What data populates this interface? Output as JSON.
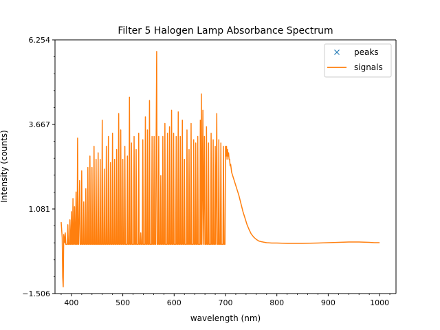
{
  "chart_data": {
    "type": "line",
    "title": "Filter 5 Halogen Lamp Absorbance Spectrum",
    "xlabel": "wavelength (nm)",
    "ylabel": "Intensity (counts)",
    "xlim": [
      368,
      1032
    ],
    "ylim": [
      -1.506,
      6.254
    ],
    "xticks": [
      400,
      500,
      600,
      700,
      800,
      900,
      1000
    ],
    "xtick_labels": [
      "400",
      "500",
      "600",
      "700",
      "800",
      "900",
      "1000"
    ],
    "yticks": [
      -1.506,
      1.081,
      3.667,
      6.254
    ],
    "ytick_labels": [
      "−1.506",
      "1.081",
      "3.667",
      "6.254"
    ],
    "grid": false,
    "legend": {
      "position": "top-right",
      "entries": [
        {
          "label": "peaks",
          "marker": "x",
          "color": "#1f77b4"
        },
        {
          "label": "signals",
          "marker": "line",
          "color": "#ff7f0e"
        }
      ]
    },
    "series": [
      {
        "name": "peaks",
        "style": "marker-x",
        "color": "#1f77b4",
        "points": []
      },
      {
        "name": "signals",
        "style": "line",
        "color": "#ff7f0e",
        "points": [
          [
            380,
            0.68
          ],
          [
            382,
            0.2
          ],
          [
            383,
            -1.0
          ],
          [
            384,
            -1.3
          ],
          [
            385,
            0.3
          ],
          [
            387,
            0.05
          ],
          [
            388,
            0.35
          ],
          [
            389,
            0.0
          ],
          [
            392,
            0.0
          ],
          [
            393,
            0.6
          ],
          [
            394,
            0.0
          ],
          [
            396,
            0.0
          ],
          [
            397,
            0.75
          ],
          [
            398,
            0.0
          ],
          [
            399,
            0.0
          ],
          [
            400,
            1.0
          ],
          [
            401,
            0.0
          ],
          [
            402,
            0.0
          ],
          [
            403,
            1.4
          ],
          [
            404,
            0.0
          ],
          [
            405,
            0.0
          ],
          [
            406,
            1.15
          ],
          [
            407,
            0.0
          ],
          [
            408,
            0.0
          ],
          [
            409,
            1.6
          ],
          [
            410,
            0.0
          ],
          [
            411,
            0.0
          ],
          [
            412,
            3.25
          ],
          [
            413,
            0.0
          ],
          [
            414,
            0.0
          ],
          [
            416,
            1.95
          ],
          [
            417,
            0.0
          ],
          [
            419,
            0.0
          ],
          [
            420,
            2.25
          ],
          [
            421,
            0.0
          ],
          [
            423,
            0.0
          ],
          [
            424,
            1.3
          ],
          [
            425,
            0.0
          ],
          [
            427,
            0.0
          ],
          [
            428,
            1.7
          ],
          [
            429,
            0.0
          ],
          [
            431,
            0.0
          ],
          [
            432,
            2.35
          ],
          [
            433,
            0.0
          ],
          [
            435,
            0.0
          ],
          [
            436,
            2.7
          ],
          [
            437,
            0.0
          ],
          [
            439,
            0.0
          ],
          [
            440,
            2.35
          ],
          [
            441,
            0.0
          ],
          [
            443,
            0.0
          ],
          [
            444,
            3.0
          ],
          [
            445,
            0.0
          ],
          [
            447,
            0.0
          ],
          [
            448,
            2.6
          ],
          [
            449,
            0.0
          ],
          [
            451,
            0.0
          ],
          [
            452,
            2.8
          ],
          [
            453,
            0.0
          ],
          [
            455,
            0.0
          ],
          [
            456,
            2.6
          ],
          [
            457,
            0.0
          ],
          [
            459,
            0.0
          ],
          [
            460,
            3.8
          ],
          [
            461,
            0.0
          ],
          [
            463,
            0.0
          ],
          [
            464,
            2.3
          ],
          [
            465,
            0.0
          ],
          [
            467,
            0.0
          ],
          [
            468,
            3.0
          ],
          [
            469,
            0.0
          ],
          [
            471,
            0.0
          ],
          [
            472,
            3.3
          ],
          [
            473,
            0.0
          ],
          [
            475,
            0.0
          ],
          [
            476,
            2.5
          ],
          [
            477,
            0.0
          ],
          [
            479,
            0.0
          ],
          [
            480,
            3.4
          ],
          [
            481,
            0.0
          ],
          [
            483,
            0.0
          ],
          [
            484,
            2.6
          ],
          [
            485,
            0.0
          ],
          [
            487,
            0.0
          ],
          [
            488,
            2.9
          ],
          [
            489,
            0.0
          ],
          [
            491,
            0.0
          ],
          [
            492,
            4.0
          ],
          [
            493,
            0.0
          ],
          [
            495,
            0.0
          ],
          [
            496,
            3.5
          ],
          [
            497,
            0.0
          ],
          [
            499,
            0.0
          ],
          [
            500,
            2.6
          ],
          [
            501,
            0.0
          ],
          [
            503,
            0.0
          ],
          [
            504,
            3.0
          ],
          [
            505,
            0.0
          ],
          [
            508,
            0.0
          ],
          [
            509,
            2.7
          ],
          [
            510,
            0.0
          ],
          [
            512,
            0.0
          ],
          [
            513,
            4.5
          ],
          [
            514,
            0.0
          ],
          [
            516,
            0.0
          ],
          [
            517,
            3.1
          ],
          [
            518,
            0.0
          ],
          [
            521,
            0.0
          ],
          [
            522,
            3.3
          ],
          [
            523,
            0.0
          ],
          [
            525,
            0.0
          ],
          [
            526,
            2.9
          ],
          [
            527,
            0.0
          ],
          [
            530,
            0.0
          ],
          [
            531,
            3.4
          ],
          [
            532,
            0.0
          ],
          [
            534,
            0.0
          ],
          [
            535,
            0.35
          ],
          [
            536,
            0.0
          ],
          [
            538,
            0.0
          ],
          [
            539,
            3.2
          ],
          [
            540,
            0.0
          ],
          [
            543,
            0.0
          ],
          [
            544,
            3.9
          ],
          [
            545,
            0.0
          ],
          [
            547,
            0.0
          ],
          [
            548,
            3.5
          ],
          [
            549,
            0.0
          ],
          [
            551,
            0.0
          ],
          [
            552,
            4.4
          ],
          [
            553,
            0.0
          ],
          [
            556,
            0.0
          ],
          [
            557,
            3.3
          ],
          [
            558,
            0.0
          ],
          [
            560,
            0.0
          ],
          [
            561,
            3.3
          ],
          [
            562,
            0.0
          ],
          [
            564,
            0.0
          ],
          [
            565,
            3.3
          ],
          [
            566,
            5.9
          ],
          [
            567,
            0.0
          ],
          [
            569,
            0.0
          ],
          [
            570,
            3.3
          ],
          [
            571,
            0.0
          ],
          [
            573,
            0.0
          ],
          [
            574,
            2.1
          ],
          [
            575,
            0.0
          ],
          [
            577,
            0.0
          ],
          [
            578,
            3.3
          ],
          [
            579,
            0.0
          ],
          [
            581,
            0.0
          ],
          [
            582,
            3.7
          ],
          [
            583,
            0.0
          ],
          [
            586,
            0.0
          ],
          [
            587,
            3.4
          ],
          [
            588,
            0.0
          ],
          [
            590,
            0.0
          ],
          [
            591,
            3.6
          ],
          [
            592,
            0.0
          ],
          [
            594,
            0.0
          ],
          [
            595,
            4.1
          ],
          [
            596,
            0.0
          ],
          [
            598,
            0.0
          ],
          [
            599,
            3.4
          ],
          [
            600,
            0.0
          ],
          [
            603,
            0.0
          ],
          [
            604,
            3.3
          ],
          [
            605,
            0.0
          ],
          [
            607,
            0.0
          ],
          [
            608,
            4.05
          ],
          [
            609,
            0.0
          ],
          [
            611,
            0.0
          ],
          [
            612,
            3.3
          ],
          [
            613,
            0.0
          ],
          [
            615,
            0.0
          ],
          [
            616,
            3.8
          ],
          [
            617,
            0.0
          ],
          [
            619,
            0.0
          ],
          [
            620,
            2.6
          ],
          [
            621,
            0.0
          ],
          [
            624,
            0.0
          ],
          [
            625,
            3.5
          ],
          [
            626,
            0.0
          ],
          [
            628,
            0.0
          ],
          [
            629,
            2.9
          ],
          [
            630,
            0.0
          ],
          [
            632,
            0.0
          ],
          [
            633,
            3.7
          ],
          [
            634,
            0.0
          ],
          [
            637,
            0.0
          ],
          [
            638,
            3.2
          ],
          [
            639,
            0.0
          ],
          [
            641,
            0.0
          ],
          [
            642,
            3.1
          ],
          [
            643,
            0.0
          ],
          [
            645,
            0.0
          ],
          [
            646,
            3.3
          ],
          [
            647,
            0.0
          ],
          [
            650,
            0.0
          ],
          [
            651,
            3.8
          ],
          [
            652,
            0.0
          ],
          [
            653,
            4.6
          ],
          [
            654,
            0.0
          ],
          [
            656,
            4.1
          ],
          [
            657,
            0.0
          ],
          [
            659,
            3.3
          ],
          [
            660,
            0.0
          ],
          [
            662,
            0.0
          ],
          [
            663,
            3.6
          ],
          [
            664,
            0.0
          ],
          [
            666,
            0.0
          ],
          [
            667,
            3.1
          ],
          [
            668,
            0.0
          ],
          [
            671,
            0.0
          ],
          [
            672,
            3.4
          ],
          [
            673,
            0.0
          ],
          [
            675,
            0.0
          ],
          [
            676,
            3.2
          ],
          [
            677,
            0.0
          ],
          [
            679,
            0.0
          ],
          [
            680,
            3.0
          ],
          [
            681,
            0.0
          ],
          [
            683,
            4.0
          ],
          [
            684,
            0.0
          ],
          [
            686,
            0.0
          ],
          [
            687,
            3.2
          ],
          [
            688,
            0.0
          ],
          [
            690,
            0.0
          ],
          [
            691,
            3.1
          ],
          [
            692,
            0.0
          ],
          [
            695,
            0.0
          ],
          [
            696,
            3.0
          ],
          [
            697,
            0.0
          ],
          [
            699,
            0.0
          ],
          [
            700,
            3.0
          ],
          [
            701,
            2.7
          ],
          [
            702,
            3.0
          ],
          [
            703,
            2.6
          ],
          [
            704,
            2.9
          ],
          [
            705,
            2.7
          ],
          [
            706,
            2.8
          ],
          [
            707,
            2.6
          ],
          [
            708,
            2.6
          ],
          [
            709,
            2.4
          ],
          [
            710,
            2.45
          ],
          [
            712,
            2.2
          ],
          [
            715,
            2.05
          ],
          [
            718,
            1.9
          ],
          [
            722,
            1.7
          ],
          [
            726,
            1.5
          ],
          [
            730,
            1.25
          ],
          [
            734,
            1.0
          ],
          [
            738,
            0.8
          ],
          [
            742,
            0.6
          ],
          [
            746,
            0.45
          ],
          [
            750,
            0.32
          ],
          [
            755,
            0.22
          ],
          [
            760,
            0.15
          ],
          [
            765,
            0.1
          ],
          [
            770,
            0.08
          ],
          [
            780,
            0.05
          ],
          [
            790,
            0.04
          ],
          [
            800,
            0.04
          ],
          [
            820,
            0.03
          ],
          [
            850,
            0.03
          ],
          [
            880,
            0.04
          ],
          [
            900,
            0.05
          ],
          [
            920,
            0.06
          ],
          [
            940,
            0.07
          ],
          [
            960,
            0.07
          ],
          [
            980,
            0.06
          ],
          [
            990,
            0.05
          ],
          [
            1000,
            0.05
          ]
        ]
      }
    ]
  }
}
